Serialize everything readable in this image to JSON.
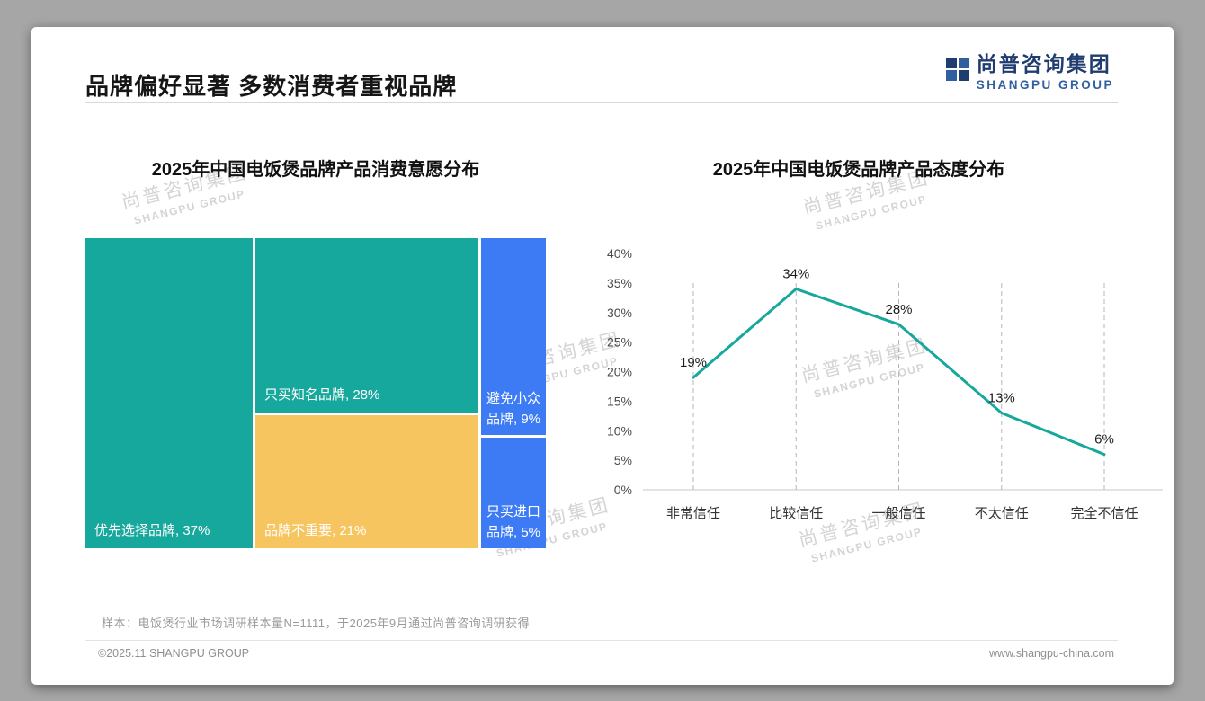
{
  "page": {
    "title": "品牌偏好显著 多数消费者重视品牌",
    "logo": {
      "cn": "尚普咨询集团",
      "en": "SHANGPU GROUP"
    },
    "watermark": {
      "cn": "尚普咨询集团",
      "en": "SHANGPU GROUP"
    },
    "footer_note": "样本：电饭煲行业市场调研样本量N=1111，于2025年9月通过尚普咨询调研获得",
    "footer_left": "©2025.11 SHANGPU GROUP",
    "footer_right": "www.shangpu-china.com"
  },
  "colors": {
    "teal": "#16A89C",
    "yellow": "#F7C55F",
    "blue": "#3D7BF5",
    "brand_blue": "#203D6F"
  },
  "chart_data": [
    {
      "type": "treemap",
      "title": "2025年中国电饭煲品牌产品消费意愿分布",
      "unit": "%",
      "items": [
        {
          "label": "优先选择品牌",
          "value": 37,
          "color": "#16A89C",
          "display": "优先选择品牌, 37%"
        },
        {
          "label": "只买知名品牌",
          "value": 28,
          "color": "#16A89C",
          "display": "只买知名品牌, 28%"
        },
        {
          "label": "品牌不重要",
          "value": 21,
          "color": "#F7C55F",
          "display": "品牌不重要, 21%"
        },
        {
          "label": "避免小众品牌",
          "value": 9,
          "color": "#3D7BF5",
          "display": "避免小众品牌, 9%"
        },
        {
          "label": "只买进口品牌",
          "value": 5,
          "color": "#3D7BF5",
          "display": "只买进口品牌, 5%"
        }
      ]
    },
    {
      "type": "line",
      "title": "2025年中国电饭煲品牌产品态度分布",
      "categories": [
        "非常信任",
        "比较信任",
        "一般信任",
        "不太信任",
        "完全不信任"
      ],
      "values": [
        19,
        34,
        28,
        13,
        6
      ],
      "unit": "%",
      "ylim": [
        0,
        40
      ],
      "ytick_step": 5,
      "grid": "dashed-vertical",
      "legend": "none",
      "line_color": "#16A89C"
    }
  ]
}
